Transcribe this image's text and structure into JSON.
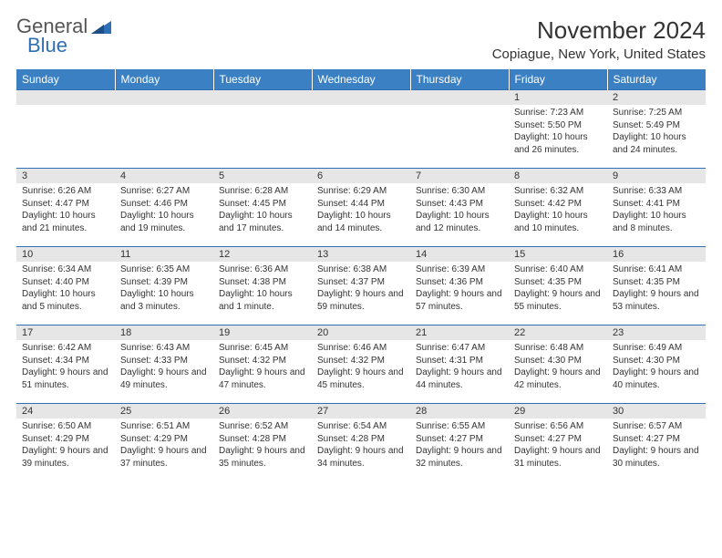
{
  "logo": {
    "text1": "General",
    "text2": "Blue",
    "color_gray": "#555555",
    "color_blue": "#2f6fb5"
  },
  "title": "November 2024",
  "location": "Copiague, New York, United States",
  "header_bg": "#3a80c3",
  "header_fg": "#ffffff",
  "daynum_bg": "#e6e6e6",
  "border_color": "#2f6fb5",
  "text_color": "#333333",
  "font_family": "Arial, Helvetica, sans-serif",
  "day_headers": [
    "Sunday",
    "Monday",
    "Tuesday",
    "Wednesday",
    "Thursday",
    "Friday",
    "Saturday"
  ],
  "weeks": [
    [
      null,
      null,
      null,
      null,
      null,
      {
        "n": "1",
        "sunrise": "7:23 AM",
        "sunset": "5:50 PM",
        "daylight": "10 hours and 26 minutes."
      },
      {
        "n": "2",
        "sunrise": "7:25 AM",
        "sunset": "5:49 PM",
        "daylight": "10 hours and 24 minutes."
      }
    ],
    [
      {
        "n": "3",
        "sunrise": "6:26 AM",
        "sunset": "4:47 PM",
        "daylight": "10 hours and 21 minutes."
      },
      {
        "n": "4",
        "sunrise": "6:27 AM",
        "sunset": "4:46 PM",
        "daylight": "10 hours and 19 minutes."
      },
      {
        "n": "5",
        "sunrise": "6:28 AM",
        "sunset": "4:45 PM",
        "daylight": "10 hours and 17 minutes."
      },
      {
        "n": "6",
        "sunrise": "6:29 AM",
        "sunset": "4:44 PM",
        "daylight": "10 hours and 14 minutes."
      },
      {
        "n": "7",
        "sunrise": "6:30 AM",
        "sunset": "4:43 PM",
        "daylight": "10 hours and 12 minutes."
      },
      {
        "n": "8",
        "sunrise": "6:32 AM",
        "sunset": "4:42 PM",
        "daylight": "10 hours and 10 minutes."
      },
      {
        "n": "9",
        "sunrise": "6:33 AM",
        "sunset": "4:41 PM",
        "daylight": "10 hours and 8 minutes."
      }
    ],
    [
      {
        "n": "10",
        "sunrise": "6:34 AM",
        "sunset": "4:40 PM",
        "daylight": "10 hours and 5 minutes."
      },
      {
        "n": "11",
        "sunrise": "6:35 AM",
        "sunset": "4:39 PM",
        "daylight": "10 hours and 3 minutes."
      },
      {
        "n": "12",
        "sunrise": "6:36 AM",
        "sunset": "4:38 PM",
        "daylight": "10 hours and 1 minute."
      },
      {
        "n": "13",
        "sunrise": "6:38 AM",
        "sunset": "4:37 PM",
        "daylight": "9 hours and 59 minutes."
      },
      {
        "n": "14",
        "sunrise": "6:39 AM",
        "sunset": "4:36 PM",
        "daylight": "9 hours and 57 minutes."
      },
      {
        "n": "15",
        "sunrise": "6:40 AM",
        "sunset": "4:35 PM",
        "daylight": "9 hours and 55 minutes."
      },
      {
        "n": "16",
        "sunrise": "6:41 AM",
        "sunset": "4:35 PM",
        "daylight": "9 hours and 53 minutes."
      }
    ],
    [
      {
        "n": "17",
        "sunrise": "6:42 AM",
        "sunset": "4:34 PM",
        "daylight": "9 hours and 51 minutes."
      },
      {
        "n": "18",
        "sunrise": "6:43 AM",
        "sunset": "4:33 PM",
        "daylight": "9 hours and 49 minutes."
      },
      {
        "n": "19",
        "sunrise": "6:45 AM",
        "sunset": "4:32 PM",
        "daylight": "9 hours and 47 minutes."
      },
      {
        "n": "20",
        "sunrise": "6:46 AM",
        "sunset": "4:32 PM",
        "daylight": "9 hours and 45 minutes."
      },
      {
        "n": "21",
        "sunrise": "6:47 AM",
        "sunset": "4:31 PM",
        "daylight": "9 hours and 44 minutes."
      },
      {
        "n": "22",
        "sunrise": "6:48 AM",
        "sunset": "4:30 PM",
        "daylight": "9 hours and 42 minutes."
      },
      {
        "n": "23",
        "sunrise": "6:49 AM",
        "sunset": "4:30 PM",
        "daylight": "9 hours and 40 minutes."
      }
    ],
    [
      {
        "n": "24",
        "sunrise": "6:50 AM",
        "sunset": "4:29 PM",
        "daylight": "9 hours and 39 minutes."
      },
      {
        "n": "25",
        "sunrise": "6:51 AM",
        "sunset": "4:29 PM",
        "daylight": "9 hours and 37 minutes."
      },
      {
        "n": "26",
        "sunrise": "6:52 AM",
        "sunset": "4:28 PM",
        "daylight": "9 hours and 35 minutes."
      },
      {
        "n": "27",
        "sunrise": "6:54 AM",
        "sunset": "4:28 PM",
        "daylight": "9 hours and 34 minutes."
      },
      {
        "n": "28",
        "sunrise": "6:55 AM",
        "sunset": "4:27 PM",
        "daylight": "9 hours and 32 minutes."
      },
      {
        "n": "29",
        "sunrise": "6:56 AM",
        "sunset": "4:27 PM",
        "daylight": "9 hours and 31 minutes."
      },
      {
        "n": "30",
        "sunrise": "6:57 AM",
        "sunset": "4:27 PM",
        "daylight": "9 hours and 30 minutes."
      }
    ]
  ],
  "labels": {
    "sunrise": "Sunrise:",
    "sunset": "Sunset:",
    "daylight": "Daylight:"
  }
}
